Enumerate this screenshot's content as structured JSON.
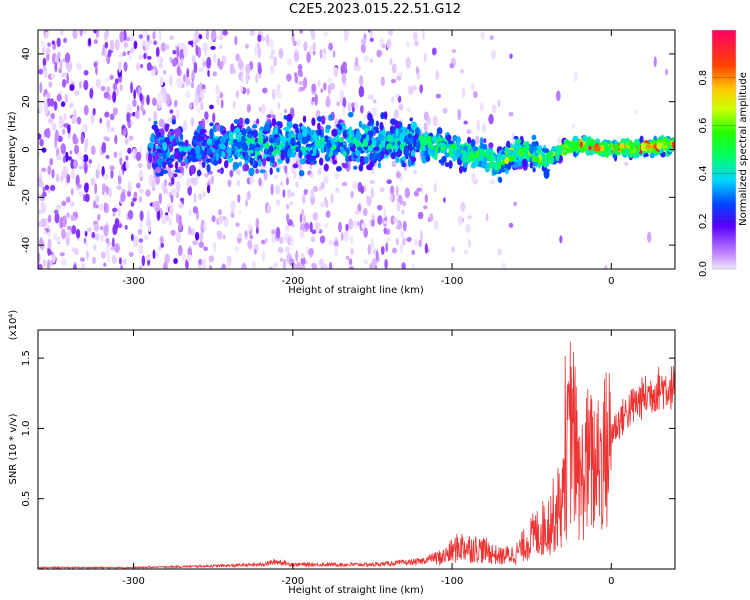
{
  "title": "C2E5.2023.015.22.51.G12",
  "chart_data": [
    {
      "type": "heatmap",
      "xlabel": "Height of straight line (km)",
      "ylabel": "Frequency (Hz)",
      "xlim": [
        -360,
        40
      ],
      "ylim": [
        -50,
        50
      ],
      "xticks": [
        -300,
        -200,
        -100,
        0
      ],
      "yticks": [
        -40,
        -20,
        0,
        20,
        40
      ],
      "colorbar": {
        "label": "Normalized spectral amplitude",
        "range": [
          0,
          1
        ],
        "ticks": [
          "0.0",
          "0.2",
          "0.4",
          "0.6",
          "0.8"
        ],
        "tick_values": [
          0,
          0.2,
          0.4,
          0.6,
          0.8
        ]
      },
      "ridge": {
        "description_points_x": [
          -290,
          -250,
          -200,
          -150,
          -120,
          -100,
          -80,
          -70,
          -60,
          -50,
          -40,
          -30,
          -20,
          -10,
          0,
          20,
          40
        ],
        "description_points_y": [
          0,
          1,
          2,
          3,
          3,
          0,
          -3,
          -6,
          0,
          -2,
          -4,
          0,
          2,
          1,
          0,
          1,
          2
        ]
      }
    },
    {
      "type": "line",
      "xlabel": "Height of straight line (km)",
      "ylabel": "SNR (10 * v/v)",
      "multiplier": "(x10⁴)",
      "xlim": [
        -360,
        40
      ],
      "ylim": [
        0,
        1.7
      ],
      "xticks": [
        -300,
        -200,
        -100,
        0
      ],
      "yticks": [
        0.5,
        1.0,
        1.5
      ],
      "ytick_labels": [
        "0.5",
        "1.0",
        "1.5"
      ],
      "series": [
        {
          "color": "#ee3333",
          "x": [
            -360,
            -300,
            -250,
            -220,
            -210,
            -200,
            -150,
            -120,
            -105,
            -95,
            -80,
            -70,
            -60,
            -50,
            -40,
            -30,
            -25,
            -20,
            -15,
            -10,
            -5,
            0,
            10,
            20,
            30,
            40
          ],
          "y": [
            0.01,
            0.01,
            0.02,
            0.03,
            0.05,
            0.03,
            0.03,
            0.05,
            0.1,
            0.18,
            0.15,
            0.1,
            0.12,
            0.25,
            0.35,
            0.55,
            1.2,
            0.65,
            0.85,
            0.8,
            0.9,
            1.0,
            1.15,
            1.25,
            1.32,
            1.33
          ]
        }
      ]
    }
  ]
}
